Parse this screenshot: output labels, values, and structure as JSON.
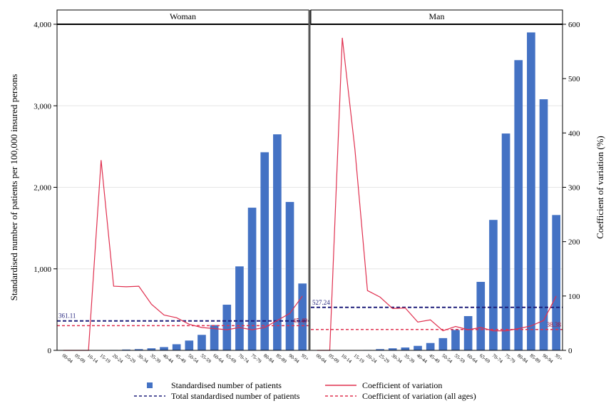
{
  "chart_data": {
    "type": "bar",
    "panels": [
      "Woman",
      "Man"
    ],
    "categories": [
      "00-04",
      "05-09",
      "10-14",
      "15-19",
      "20-24",
      "25-29",
      "30-34",
      "35-39",
      "40-44",
      "45-49",
      "50-54",
      "55-59",
      "60-64",
      "65-69",
      "70-74",
      "75-79",
      "80-84",
      "85-89",
      "90-94",
      "95+"
    ],
    "ylabel": "Standardised number of patients per 100,000 insured persons",
    "y2label": "Coefficient of variation (%)",
    "ylim": [
      0,
      4000
    ],
    "y2lim": [
      0,
      600
    ],
    "yticks": [
      "0",
      "1,000",
      "2,000",
      "3,000",
      "4,000"
    ],
    "y2ticks": [
      "0",
      "100",
      "200",
      "300",
      "400",
      "500",
      "600"
    ],
    "grid": true,
    "colors": {
      "bar": "#4472C4",
      "cv_line": "#E0304F",
      "total_line": "#1F1F7A",
      "cv_all_line": "#E0304F"
    },
    "series": [
      {
        "name": "Standardised number of patients",
        "type": "bar",
        "axis": "left",
        "values": {
          "Woman": [
            0,
            0,
            0,
            0,
            5,
            10,
            15,
            25,
            40,
            75,
            120,
            190,
            310,
            560,
            1030,
            1750,
            2430,
            2650,
            1820,
            820
          ],
          "Man": [
            0,
            0,
            0,
            0,
            5,
            15,
            25,
            35,
            55,
            90,
            150,
            250,
            420,
            840,
            1600,
            2660,
            3560,
            3900,
            3080,
            1660
          ]
        }
      },
      {
        "name": "Coefficient of variation",
        "type": "line",
        "axis": "right",
        "values": {
          "Woman": [
            0,
            0,
            0,
            350,
            118,
            117,
            118,
            85,
            65,
            60,
            48,
            42,
            40,
            38,
            42,
            38,
            42,
            55,
            68,
            100
          ],
          "Man": [
            0,
            0,
            575,
            370,
            110,
            98,
            77,
            78,
            52,
            56,
            36,
            44,
            38,
            42,
            36,
            36,
            40,
            45,
            55,
            100
          ]
        }
      },
      {
        "name": "Total standardised number of patients",
        "type": "hline",
        "axis": "left",
        "values": {
          "Woman": 361.11,
          "Man": 527.24
        },
        "labels": {
          "Woman": "361.11",
          "Man": "527.24"
        }
      },
      {
        "name": "Coefficient of variation (all ages)",
        "type": "hline",
        "axis": "right",
        "values": {
          "Woman": 45.49,
          "Man": 38.38
        },
        "labels": {
          "Woman": "45.49",
          "Man": "38.38"
        }
      }
    ],
    "legend": [
      {
        "name": "Standardised number of patients",
        "symbol": "square"
      },
      {
        "name": "Coefficient of variation",
        "symbol": "line"
      },
      {
        "name": "Total standardised number of patients",
        "symbol": "dashed-navy"
      },
      {
        "name": "Coefficient of variation (all ages)",
        "symbol": "dashed-red"
      }
    ],
    "legend_position": "bottom"
  }
}
